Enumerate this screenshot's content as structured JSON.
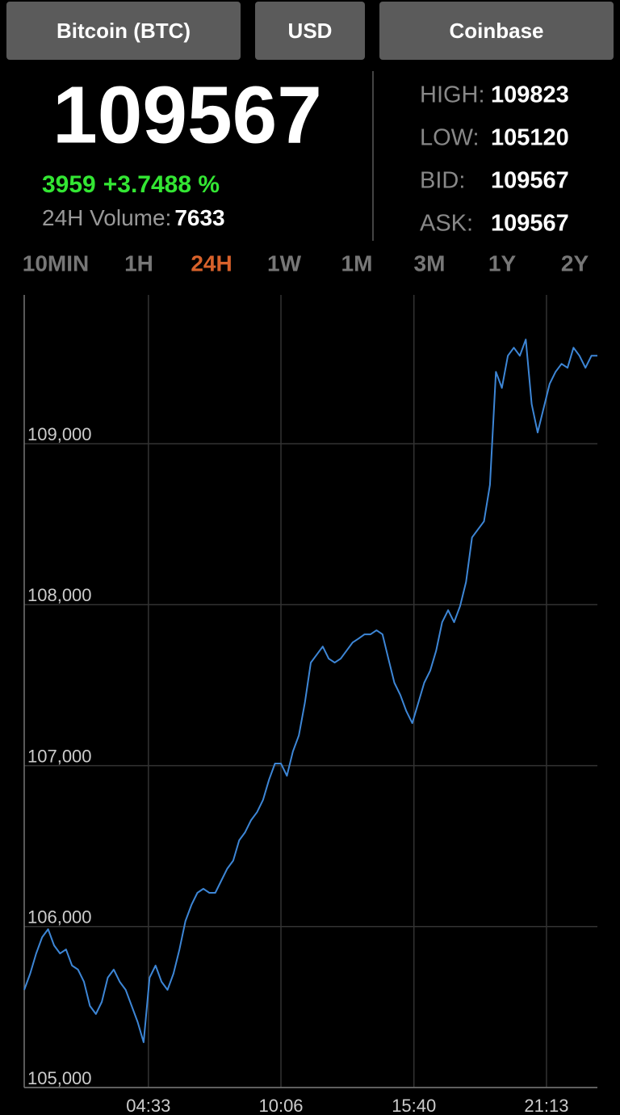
{
  "header": {
    "buttons": [
      "Bitcoin (BTC)",
      "USD",
      "Coinbase"
    ]
  },
  "price": {
    "last": 109567,
    "change": 3959,
    "change_pct": "+3.7488 %",
    "volume_label": "24H Volume:",
    "volume": 7633
  },
  "stats": [
    {
      "label": "HIGH:",
      "value": 109823
    },
    {
      "label": "LOW:",
      "value": 105120
    },
    {
      "label": "BID:",
      "value": 109567
    },
    {
      "label": "ASK:",
      "value": 109567
    }
  ],
  "tabs": {
    "items": [
      "10MIN",
      "1H",
      "24H",
      "1W",
      "1M",
      "3M",
      "1Y",
      "2Y"
    ],
    "selected": "24H"
  },
  "chart_data": {
    "type": "line",
    "color": "#3d86d6",
    "grid": true,
    "values": [
      105607,
      105708,
      105833,
      105934,
      105984,
      105883,
      105833,
      105858,
      105758,
      105733,
      105657,
      105507,
      105457,
      105532,
      105683,
      105733,
      105657,
      105607,
      105507,
      105407,
      105281,
      105683,
      105758,
      105657,
      105607,
      105708,
      105858,
      106034,
      106134,
      106210,
      106235,
      106210,
      106210,
      106285,
      106360,
      106410,
      106536,
      106586,
      106661,
      106711,
      106787,
      106912,
      107013,
      107013,
      106937,
      107088,
      107188,
      107389,
      107640,
      107690,
      107740,
      107665,
      107640,
      107665,
      107715,
      107765,
      107790,
      107816,
      107816,
      107841,
      107816,
      107665,
      107515,
      107439,
      107339,
      107264,
      107389,
      107515,
      107590,
      107715,
      107891,
      107966,
      107891,
      107991,
      108142,
      108418,
      108468,
      108518,
      108744,
      109447,
      109347,
      109547,
      109597,
      109547,
      109648,
      109246,
      109070,
      109221,
      109372,
      109447,
      109497,
      109472,
      109597,
      109547,
      109472,
      109547,
      109547
    ],
    "xlim": [
      0,
      96
    ],
    "xticks": [
      {
        "value": 20.8,
        "label": "04:33"
      },
      {
        "value": 43,
        "label": "10:06"
      },
      {
        "value": 65.27,
        "label": "15:40"
      },
      {
        "value": 87.47,
        "label": "21:13"
      }
    ],
    "ylim": [
      105000,
      109925
    ],
    "yticks": [
      {
        "value": 105000,
        "label": "105,000"
      },
      {
        "value": 106000,
        "label": "106,000"
      },
      {
        "value": 107000,
        "label": "107,000"
      },
      {
        "value": 108000,
        "label": "108,000"
      },
      {
        "value": 109000,
        "label": "109,000"
      }
    ]
  }
}
